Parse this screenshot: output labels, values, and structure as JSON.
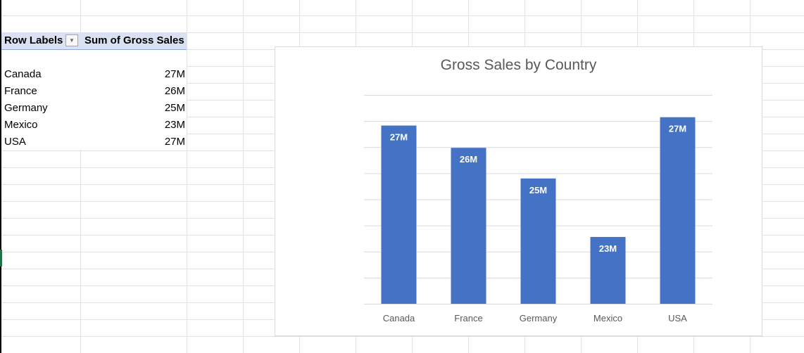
{
  "pivot": {
    "header": {
      "row_labels": "Row Labels",
      "sum_label": "Sum of Gross Sales"
    },
    "rows": [
      {
        "label": "Canada",
        "value": "27M"
      },
      {
        "label": "France",
        "value": "26M"
      },
      {
        "label": "Germany",
        "value": "25M"
      },
      {
        "label": "Mexico",
        "value": "23M"
      },
      {
        "label": "USA",
        "value": "27M"
      }
    ]
  },
  "colors": {
    "bar": "#4472c4",
    "header_fill": "#d9e1f2",
    "gridline": "#d9d9d9"
  },
  "chart_data": {
    "type": "bar",
    "title": "Gross Sales by Country",
    "categories": [
      "Canada",
      "France",
      "Germany",
      "Mexico",
      "USA"
    ],
    "values": [
      26.9,
      26.1,
      25.0,
      22.9,
      27.2
    ],
    "data_labels": [
      "27M",
      "26M",
      "25M",
      "23M",
      "27M"
    ],
    "ylim": [
      20.5,
      28.0
    ],
    "grid": true,
    "legend": "none"
  }
}
